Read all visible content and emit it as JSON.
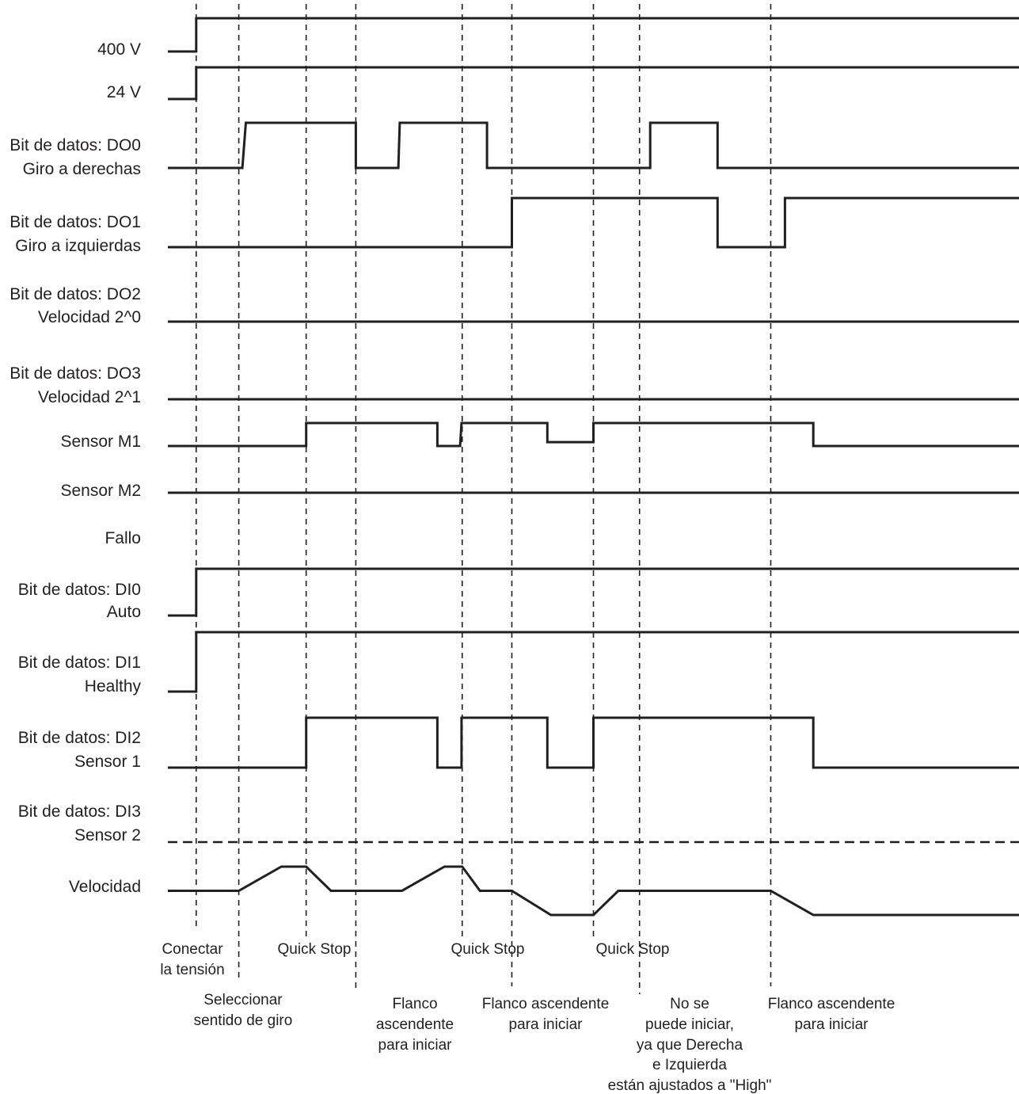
{
  "colors": {
    "line": "#231f20",
    "background": "#ffffff"
  },
  "signals": [
    {
      "id": "v400",
      "lines": [
        "400 V"
      ],
      "wave": [
        [
          0,
          1
        ],
        [
          0.4,
          1
        ],
        [
          0.4,
          0
        ],
        [
          12,
          0
        ]
      ]
    },
    {
      "id": "v24",
      "lines": [
        "24 V"
      ],
      "wave": [
        [
          0,
          1
        ],
        [
          0.4,
          1
        ],
        [
          0.4,
          0
        ],
        [
          12,
          0
        ]
      ]
    },
    {
      "id": "do0",
      "lines": [
        "Bit de datos: DO0",
        "Giro a derechas"
      ],
      "wave": [
        [
          0,
          1
        ],
        [
          1.05,
          1
        ],
        [
          1.1,
          0
        ],
        [
          2.65,
          0
        ],
        [
          2.65,
          1
        ],
        [
          3.25,
          1
        ],
        [
          3.27,
          0
        ],
        [
          4.5,
          0
        ],
        [
          4.5,
          1
        ],
        [
          6.8,
          1
        ],
        [
          6.8,
          0
        ],
        [
          7.75,
          0
        ],
        [
          7.75,
          1
        ],
        [
          12,
          1
        ]
      ]
    },
    {
      "id": "do1",
      "lines": [
        "Bit de datos: DO1",
        "Giro a izquierdas"
      ],
      "wave": [
        [
          0,
          1
        ],
        [
          4.85,
          1
        ],
        [
          4.85,
          0
        ],
        [
          7.75,
          0
        ],
        [
          7.75,
          1
        ],
        [
          8.7,
          1
        ],
        [
          8.7,
          0
        ],
        [
          12,
          0
        ]
      ]
    },
    {
      "id": "do2",
      "lines": [
        "Bit de datos: DO2",
        "Velocidad 2^0"
      ],
      "wave": [
        [
          0,
          1
        ],
        [
          12,
          1
        ]
      ]
    },
    {
      "id": "do3",
      "lines": [
        "Bit de datos: DO3",
        "Velocidad 2^1"
      ],
      "wave": [
        [
          0,
          1
        ],
        [
          12,
          1
        ]
      ]
    },
    {
      "id": "m1",
      "lines": [
        "Sensor M1"
      ],
      "wave": [
        [
          0,
          1
        ],
        [
          1.95,
          1
        ],
        [
          1.95,
          0
        ],
        [
          3.8,
          0
        ],
        [
          3.8,
          1
        ],
        [
          4.12,
          1
        ],
        [
          4.14,
          0
        ],
        [
          5.35,
          0
        ],
        [
          5.35,
          0.83
        ],
        [
          6,
          0.83
        ],
        [
          6,
          0
        ],
        [
          9.1,
          0
        ],
        [
          9.1,
          1
        ],
        [
          12,
          1
        ]
      ]
    },
    {
      "id": "m2",
      "lines": [
        "Sensor M2"
      ],
      "wave": [
        [
          0,
          1
        ],
        [
          12,
          1
        ]
      ]
    },
    {
      "id": "fallo",
      "lines": [
        "Fallo"
      ],
      "wave": []
    },
    {
      "id": "di0",
      "lines": [
        "Bit de datos: DI0",
        "Auto"
      ],
      "wave": [
        [
          0,
          1
        ],
        [
          0.4,
          1
        ],
        [
          0.4,
          0
        ],
        [
          12,
          0
        ]
      ]
    },
    {
      "id": "di1",
      "lines": [
        "Bit de datos: DI1",
        "Healthy"
      ],
      "wave": [
        [
          0,
          1
        ],
        [
          0.4,
          1
        ],
        [
          0.4,
          0
        ],
        [
          12,
          0
        ]
      ]
    },
    {
      "id": "di2",
      "lines": [
        "Bit de datos: DI2",
        "Sensor 1"
      ],
      "wave": [
        [
          0,
          1
        ],
        [
          1.95,
          1
        ],
        [
          1.95,
          0
        ],
        [
          3.8,
          0
        ],
        [
          3.8,
          1
        ],
        [
          4.14,
          1
        ],
        [
          4.14,
          0
        ],
        [
          5.35,
          0
        ],
        [
          5.35,
          1
        ],
        [
          6,
          1
        ],
        [
          6,
          0
        ],
        [
          9.1,
          0
        ],
        [
          9.1,
          1
        ],
        [
          12,
          1
        ]
      ]
    },
    {
      "id": "di3",
      "lines": [
        "Bit de datos: DI3",
        "Sensor 2"
      ],
      "wave": []
    },
    {
      "id": "speed",
      "lines": [
        "Velocidad"
      ],
      "wave": [
        [
          0,
          0.5
        ],
        [
          1,
          0.5
        ],
        [
          1.6,
          0
        ],
        [
          1.95,
          0
        ],
        [
          2.3,
          0.5
        ],
        [
          3.3,
          0.5
        ],
        [
          3.9,
          0
        ],
        [
          4.15,
          0
        ],
        [
          4.4,
          0.5
        ],
        [
          4.85,
          0.5
        ],
        [
          5.4,
          1
        ],
        [
          6,
          1
        ],
        [
          6.35,
          0.5
        ],
        [
          8.5,
          0.5
        ],
        [
          9.1,
          1
        ],
        [
          12,
          1
        ]
      ]
    }
  ],
  "markers": [
    {
      "id": "conectar",
      "t": 0.4,
      "lines": [
        "Conectar",
        "la tensión"
      ]
    },
    {
      "id": "seleccionar",
      "t": 1,
      "lines": [
        "Seleccionar",
        "sentido de giro"
      ]
    },
    {
      "id": "quick-stop-1",
      "t": 1.95,
      "lines": [
        "Quick Stop"
      ]
    },
    {
      "id": "flanco-1",
      "t": 2.65,
      "lines": [
        "Flanco",
        "ascendente",
        "para iniciar"
      ]
    },
    {
      "id": "quick-stop-2",
      "t": 4.15,
      "lines": [
        "Quick Stop"
      ]
    },
    {
      "id": "flanco-2",
      "t": 4.85,
      "lines": [
        "Flanco ascendente",
        "para iniciar"
      ]
    },
    {
      "id": "quick-stop-3",
      "t": 6,
      "lines": [
        "Quick Stop"
      ]
    },
    {
      "id": "no-se-puede",
      "t": 6.65,
      "lines": [
        "No se",
        "puede iniciar,",
        "ya que Derecha",
        "e Izquierda",
        "están ajustados a \"High\""
      ]
    },
    {
      "id": "flanco-3",
      "t": 8.5,
      "lines": [
        "Flanco ascendente",
        "para iniciar"
      ]
    }
  ]
}
